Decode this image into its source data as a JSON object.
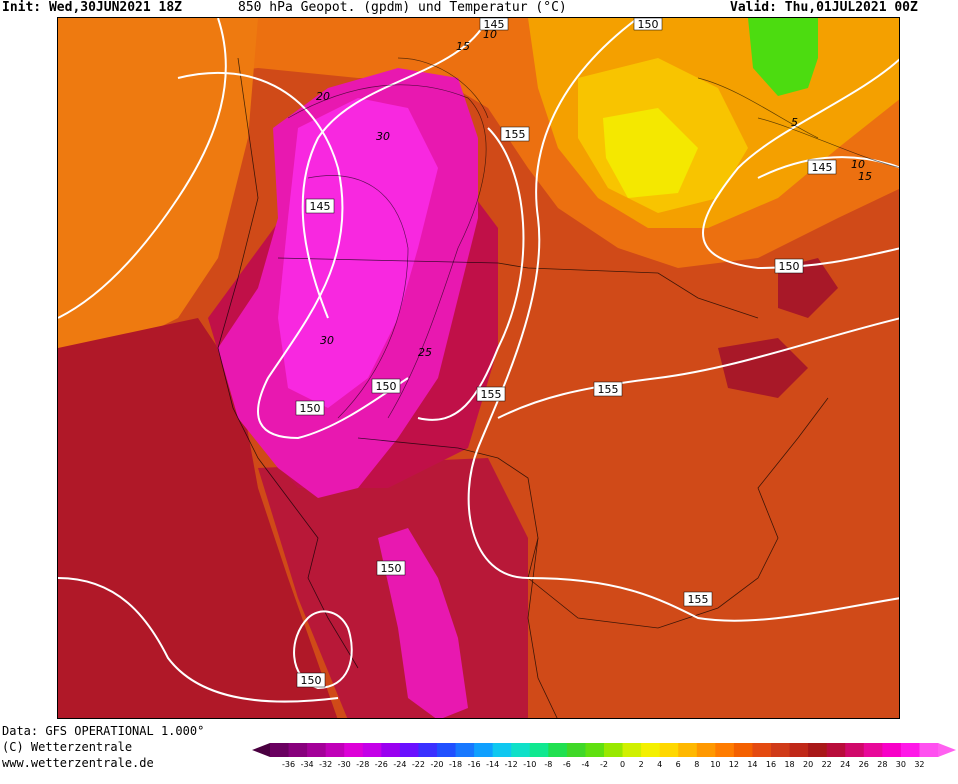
{
  "header": {
    "init": "Init: Wed,30JUN2021 18Z",
    "title": "850 hPa Geopot. (gpdm) und Temperatur (°C)",
    "valid": "Valid: Thu,01JUL2021 00Z"
  },
  "footer": {
    "data": "Data: GFS OPERATIONAL 1.000°",
    "copyright": "(C) Wetterzentrale",
    "url": "www.wetterzentrale.de"
  },
  "contour_labels": {
    "geopot": [
      "145",
      "145",
      "145",
      "150",
      "150",
      "150",
      "150",
      "150",
      "150",
      "155",
      "155",
      "155",
      "155"
    ],
    "temp": [
      "10",
      "15",
      "30",
      "20",
      "30",
      "25",
      "5",
      "10",
      "15"
    ]
  },
  "legend": {
    "ticks": [
      "-36",
      "-34",
      "-32",
      "-30",
      "-28",
      "-26",
      "-24",
      "-22",
      "-20",
      "-18",
      "-16",
      "-14",
      "-12",
      "-10",
      "-8",
      "-6",
      "-4",
      "-2",
      "0",
      "2",
      "4",
      "6",
      "8",
      "10",
      "12",
      "14",
      "16",
      "18",
      "20",
      "22",
      "24",
      "26",
      "28",
      "30",
      "32"
    ],
    "colors": [
      "#6a0060",
      "#87007c",
      "#a30098",
      "#c000b8",
      "#dd00d8",
      "#c400e8",
      "#9a00f0",
      "#6a10ff",
      "#3a30ff",
      "#2050ff",
      "#1878ff",
      "#10a0ff",
      "#10c8f0",
      "#10e0c8",
      "#10e890",
      "#20e050",
      "#40d828",
      "#60e010",
      "#98e800",
      "#d0f000",
      "#f4f000",
      "#ffd800",
      "#ffb800",
      "#ff9800",
      "#ff7c00",
      "#f46000",
      "#e44a10",
      "#d03a18",
      "#c02818",
      "#a81818",
      "#b80c3a",
      "#d0086a",
      "#e8089a",
      "#f800c8",
      "#ff18e8",
      "#ff50f0"
    ]
  },
  "colors": {
    "hot": "#c81838",
    "warm": "#d84818",
    "mild": "#f07810",
    "cool": "#f8c000",
    "cold": "#50e010",
    "extreme": "#f018d0"
  }
}
